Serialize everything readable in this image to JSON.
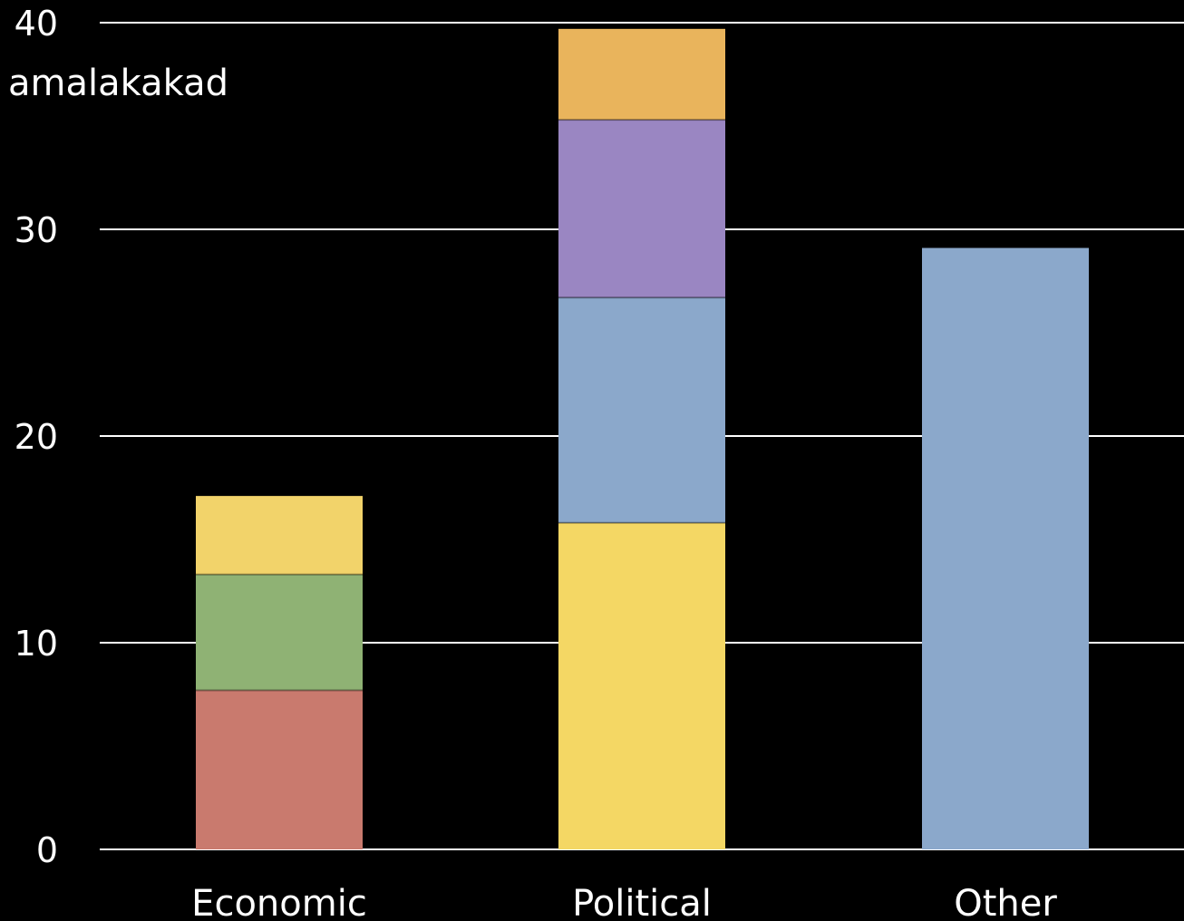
{
  "chart_data": {
    "type": "bar",
    "stacked": true,
    "categories": [
      "Economic",
      "Political",
      "Other"
    ],
    "ylabel": "amalakakad",
    "ylim": [
      0,
      40
    ],
    "yticks": [
      0,
      10,
      20,
      30,
      40
    ],
    "grid": true,
    "background": "#000000",
    "gridline_color": "#ffffff",
    "segments": [
      [
        {
          "value": 7.7,
          "color": "#c97a6e"
        },
        {
          "value": 5.6,
          "color": "#8fb274"
        },
        {
          "value": 3.8,
          "color": "#f2d36a"
        }
      ],
      [
        {
          "value": 15.8,
          "color": "#f4d764"
        },
        {
          "value": 10.9,
          "color": "#8ba8cb"
        },
        {
          "value": 8.6,
          "color": "#9a86c2"
        },
        {
          "value": 4.4,
          "color": "#e9b45c"
        }
      ],
      [
        {
          "value": 29.1,
          "color": "#8ba8cb"
        }
      ]
    ]
  }
}
